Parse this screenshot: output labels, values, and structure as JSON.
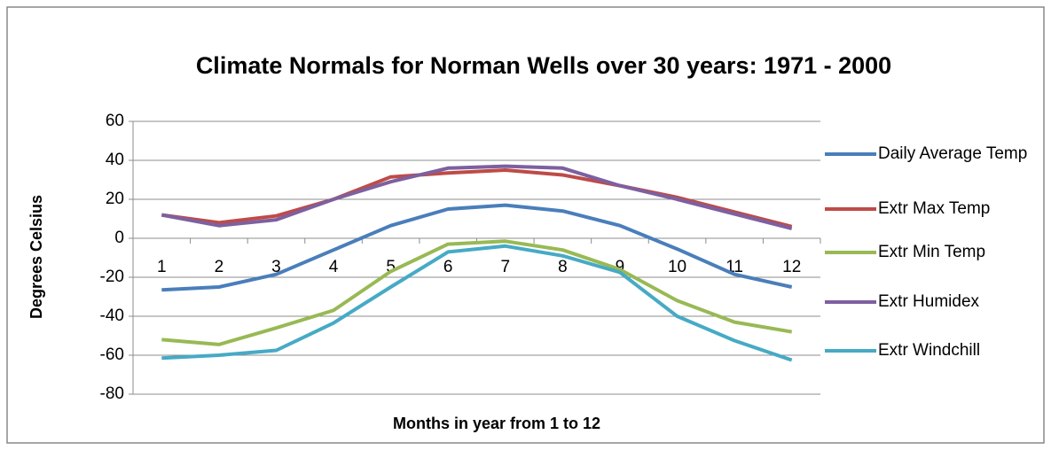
{
  "chart_data": {
    "type": "line",
    "title": "Climate Normals for Norman Wells over 30 years: 1971 - 2000",
    "xlabel": "Months in year from 1 to 12",
    "ylabel": "Degrees Celsius",
    "categories": [
      "1",
      "2",
      "3",
      "4",
      "5",
      "6",
      "7",
      "8",
      "9",
      "10",
      "11",
      "12"
    ],
    "ylim": [
      -80,
      60
    ],
    "yticks": [
      -80,
      -60,
      -40,
      -20,
      0,
      20,
      40,
      60
    ],
    "grid": true,
    "legend": "right",
    "series": [
      {
        "name": "Daily Average Temp",
        "color": "#4a7ebb",
        "values": [
          -26.5,
          -25,
          -18.5,
          -6,
          6.5,
          15,
          17,
          14,
          6.5,
          -5.5,
          -18.5,
          -25
        ]
      },
      {
        "name": "Extr Max Temp",
        "color": "#be4b48",
        "values": [
          12,
          8,
          11.5,
          20,
          31.5,
          33.5,
          35,
          32.5,
          27,
          21,
          13.5,
          6
        ]
      },
      {
        "name": "Extr Min Temp",
        "color": "#98b954",
        "values": [
          -52,
          -54.5,
          -46,
          -37,
          -17,
          -3,
          -1.5,
          -6,
          -16,
          -32,
          -43,
          -48
        ]
      },
      {
        "name": "Extr Humidex",
        "color": "#7d60a0",
        "values": [
          12,
          6.5,
          9.5,
          20,
          29,
          36,
          37,
          36,
          27,
          20,
          12.5,
          5
        ]
      },
      {
        "name": "Extr Windchill",
        "color": "#46aac5",
        "values": [
          -61.5,
          -60,
          -57.5,
          -43.5,
          -25,
          -7,
          -4,
          -9,
          -17.5,
          -40,
          -52.5,
          -62.5
        ]
      }
    ]
  }
}
